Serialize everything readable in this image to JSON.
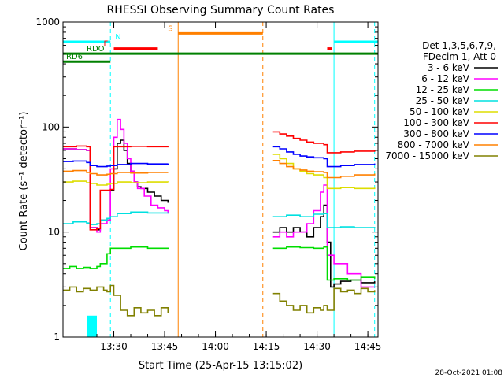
{
  "chart_data": {
    "type": "line",
    "title": "RHESSI Observing Summary Count Rates",
    "xlabel": "Start Time (25-Apr-15 13:15:02)",
    "ylabel": "Count Rate (s⁻¹ detector⁻¹)",
    "y_scale": "log",
    "ylim": [
      1,
      1000
    ],
    "x_units": "minutes after 13:15:02",
    "xlim": [
      0,
      93
    ],
    "x_ticks": [
      {
        "t": 15,
        "label": "13:30"
      },
      {
        "t": 30,
        "label": "13:45"
      },
      {
        "t": 45,
        "label": "14:00"
      },
      {
        "t": 60,
        "label": "14:15"
      },
      {
        "t": 75,
        "label": "14:30"
      },
      {
        "t": 90,
        "label": "14:45"
      }
    ],
    "y_ticks": [
      {
        "v": 1,
        "label": "1"
      },
      {
        "v": 10,
        "label": "10"
      },
      {
        "v": 100,
        "label": "100"
      },
      {
        "v": 1000,
        "label": "1000"
      }
    ],
    "legend_header": [
      "Det 1,3,5,6,7,9,",
      "FDecim 1, Att 0"
    ],
    "legend_position": "right",
    "series": [
      {
        "name": "3 - 6 keV",
        "color": "#000000",
        "segments": [
          [
            [
              0,
              62
            ],
            [
              4,
              61
            ],
            [
              7,
              60
            ],
            [
              8,
              11
            ],
            [
              10,
              10.5
            ],
            [
              11,
              13
            ],
            [
              13,
              13
            ],
            [
              14,
              25
            ],
            [
              15,
              40
            ],
            [
              16,
              70
            ],
            [
              17,
              75
            ],
            [
              18,
              60
            ],
            [
              19,
              45
            ],
            [
              20,
              38
            ],
            [
              21,
              30
            ],
            [
              22,
              27
            ],
            [
              23,
              26
            ],
            [
              25,
              24
            ],
            [
              27,
              22
            ],
            [
              29,
              20
            ],
            [
              31,
              19
            ]
          ],
          [
            [
              62,
              10
            ],
            [
              64,
              11
            ],
            [
              66,
              10
            ],
            [
              68,
              11
            ],
            [
              70,
              10
            ],
            [
              72,
              9
            ],
            [
              74,
              11
            ],
            [
              76,
              14
            ],
            [
              77,
              18
            ],
            [
              78,
              8
            ],
            [
              79,
              3
            ],
            [
              80,
              3.2
            ],
            [
              82,
              3.4
            ],
            [
              85,
              3.5
            ],
            [
              88,
              3.3
            ],
            [
              92,
              3.4
            ]
          ]
        ]
      },
      {
        "name": "6 - 12 keV",
        "color": "#ff00ff",
        "segments": [
          [
            [
              0,
              62
            ],
            [
              4,
              61
            ],
            [
              7,
              60
            ],
            [
              8,
              11
            ],
            [
              10,
              10
            ],
            [
              11,
              12
            ],
            [
              13,
              13
            ],
            [
              14,
              40
            ],
            [
              15,
              80
            ],
            [
              16,
              118
            ],
            [
              17,
              95
            ],
            [
              18,
              70
            ],
            [
              19,
              50
            ],
            [
              20,
              38
            ],
            [
              21,
              30
            ],
            [
              22,
              26
            ],
            [
              24,
              22
            ],
            [
              26,
              18
            ],
            [
              28,
              17
            ],
            [
              30,
              16
            ],
            [
              31,
              15
            ]
          ],
          [
            [
              62,
              9
            ],
            [
              64,
              10
            ],
            [
              66,
              9
            ],
            [
              68,
              10
            ],
            [
              70,
              10
            ],
            [
              72,
              12
            ],
            [
              74,
              16
            ],
            [
              76,
              24
            ],
            [
              77,
              28
            ],
            [
              78,
              6
            ],
            [
              80,
              5
            ],
            [
              84,
              4
            ],
            [
              88,
              3
            ],
            [
              92,
              3
            ]
          ]
        ]
      },
      {
        "name": "12 - 25 keV",
        "color": "#00dd00",
        "segments": [
          [
            [
              0,
              4.5
            ],
            [
              2,
              4.7
            ],
            [
              4,
              4.5
            ],
            [
              6,
              4.6
            ],
            [
              8,
              4.5
            ],
            [
              10,
              4.7
            ],
            [
              11,
              5
            ],
            [
              13,
              6.2
            ],
            [
              14,
              7
            ],
            [
              16,
              7
            ],
            [
              20,
              7.2
            ],
            [
              25,
              7
            ],
            [
              31,
              7.1
            ]
          ],
          [
            [
              62,
              7
            ],
            [
              66,
              7.2
            ],
            [
              70,
              7.1
            ],
            [
              74,
              7
            ],
            [
              77,
              7.2
            ],
            [
              78,
              3.5
            ],
            [
              80,
              3.6
            ],
            [
              84,
              3.5
            ],
            [
              88,
              3.7
            ],
            [
              92,
              3.6
            ]
          ]
        ]
      },
      {
        "name": "25 - 50 keV",
        "color": "#00e0e0",
        "segments": [
          [
            [
              0,
              12
            ],
            [
              3,
              12.5
            ],
            [
              7,
              12.2
            ],
            [
              8,
              11.8
            ],
            [
              10,
              12
            ],
            [
              11,
              13
            ],
            [
              13,
              13.5
            ],
            [
              14,
              14
            ],
            [
              16,
              15
            ],
            [
              20,
              15.5
            ],
            [
              25,
              15.2
            ],
            [
              31,
              15
            ]
          ],
          [
            [
              62,
              14
            ],
            [
              66,
              14.5
            ],
            [
              70,
              14
            ],
            [
              74,
              14.8
            ],
            [
              77,
              15
            ],
            [
              78,
              11
            ],
            [
              82,
              11.2
            ],
            [
              86,
              11
            ],
            [
              92,
              11.2
            ]
          ]
        ]
      },
      {
        "name": "50 - 100 keV",
        "color": "#dddd00",
        "segments": [
          [
            [
              0,
              30
            ],
            [
              3,
              30.5
            ],
            [
              7,
              29.5
            ],
            [
              8,
              29
            ],
            [
              10,
              28
            ],
            [
              13,
              28.5
            ],
            [
              14,
              29
            ],
            [
              16,
              30
            ],
            [
              20,
              29.5
            ],
            [
              25,
              30
            ],
            [
              31,
              29.8
            ]
          ],
          [
            [
              62,
              55
            ],
            [
              64,
              50
            ],
            [
              66,
              45
            ],
            [
              68,
              40
            ],
            [
              70,
              38
            ],
            [
              72,
              36
            ],
            [
              74,
              35
            ],
            [
              77,
              33
            ],
            [
              78,
              26
            ],
            [
              82,
              26.5
            ],
            [
              86,
              26
            ],
            [
              92,
              26.5
            ]
          ]
        ]
      },
      {
        "name": "100 - 300 keV",
        "color": "#ff0000",
        "segments": [
          [
            [
              0,
              65
            ],
            [
              4,
              66
            ],
            [
              7,
              65
            ],
            [
              8,
              10.5
            ],
            [
              10,
              10.8
            ],
            [
              11,
              25
            ],
            [
              14,
              25.5
            ],
            [
              15,
              65
            ],
            [
              20,
              65.5
            ],
            [
              25,
              65
            ],
            [
              31,
              65.2
            ]
          ],
          [
            [
              62,
              90
            ],
            [
              64,
              86
            ],
            [
              66,
              82
            ],
            [
              68,
              78
            ],
            [
              70,
              75
            ],
            [
              72,
              72
            ],
            [
              74,
              70
            ],
            [
              77,
              68
            ],
            [
              78,
              57
            ],
            [
              82,
              58
            ],
            [
              86,
              59
            ],
            [
              92,
              60
            ]
          ]
        ]
      },
      {
        "name": "300 - 800 keV",
        "color": "#0000ff",
        "segments": [
          [
            [
              0,
              47
            ],
            [
              3,
              47.5
            ],
            [
              7,
              46
            ],
            [
              8,
              43
            ],
            [
              10,
              42
            ],
            [
              13,
              42.5
            ],
            [
              14,
              43
            ],
            [
              16,
              44
            ],
            [
              20,
              45
            ],
            [
              25,
              44.5
            ],
            [
              31,
              45
            ]
          ],
          [
            [
              62,
              65
            ],
            [
              64,
              62
            ],
            [
              66,
              58
            ],
            [
              68,
              55
            ],
            [
              70,
              53
            ],
            [
              72,
              52
            ],
            [
              74,
              51
            ],
            [
              77,
              50
            ],
            [
              78,
              42
            ],
            [
              82,
              43
            ],
            [
              86,
              44
            ],
            [
              92,
              45
            ]
          ]
        ]
      },
      {
        "name": "800 - 7000 keV",
        "color": "#ff8000",
        "segments": [
          [
            [
              0,
              38
            ],
            [
              3,
              38.5
            ],
            [
              7,
              37
            ],
            [
              8,
              36
            ],
            [
              10,
              35
            ],
            [
              13,
              35.5
            ],
            [
              14,
              36
            ],
            [
              16,
              37
            ],
            [
              20,
              36.5
            ],
            [
              25,
              37
            ],
            [
              31,
              36.8
            ]
          ],
          [
            [
              62,
              48
            ],
            [
              64,
              45
            ],
            [
              66,
              42
            ],
            [
              68,
              40
            ],
            [
              70,
              39
            ],
            [
              72,
              38
            ],
            [
              74,
              37.5
            ],
            [
              77,
              37
            ],
            [
              78,
              33
            ],
            [
              82,
              34
            ],
            [
              86,
              35
            ],
            [
              92,
              36
            ]
          ]
        ]
      },
      {
        "name": "7000 - 15000 keV",
        "color": "#808000",
        "segments": [
          [
            [
              0,
              2.8
            ],
            [
              2,
              3.0
            ],
            [
              4,
              2.7
            ],
            [
              6,
              2.9
            ],
            [
              8,
              2.8
            ],
            [
              10,
              3.0
            ],
            [
              12,
              2.8
            ],
            [
              13,
              2.7
            ],
            [
              14,
              3.1
            ],
            [
              15,
              2.5
            ],
            [
              17,
              1.8
            ],
            [
              19,
              1.6
            ],
            [
              21,
              1.9
            ],
            [
              23,
              1.7
            ],
            [
              25,
              1.8
            ],
            [
              27,
              1.6
            ],
            [
              29,
              1.9
            ],
            [
              31,
              1.7
            ]
          ],
          [
            [
              62,
              2.6
            ],
            [
              64,
              2.2
            ],
            [
              66,
              2.0
            ],
            [
              68,
              1.8
            ],
            [
              70,
              2.0
            ],
            [
              72,
              1.7
            ],
            [
              74,
              1.9
            ],
            [
              76,
              1.8
            ],
            [
              77,
              2.0
            ],
            [
              78,
              1.8
            ],
            [
              80,
              2.9
            ],
            [
              82,
              2.7
            ],
            [
              84,
              2.8
            ],
            [
              86,
              2.6
            ],
            [
              88,
              2.9
            ],
            [
              90,
              2.7
            ],
            [
              92,
              2.8
            ]
          ]
        ]
      }
    ],
    "state_bars": [
      {
        "label": "N",
        "color": "#00ffff",
        "from": 0,
        "to": 14,
        "level": 650
      },
      {
        "label": "",
        "color": "#00ffff",
        "from": 80,
        "to": 93,
        "level": 650
      },
      {
        "label": "S",
        "color": "#ff8000",
        "from": 34,
        "to": 59,
        "level": 780
      },
      {
        "label": "F",
        "color": "#ff0000",
        "from": 15,
        "to": 28,
        "level": 560
      },
      {
        "label": "",
        "color": "#ff0000",
        "from": 78,
        "to": 79.5,
        "level": 560
      },
      {
        "label": "RDO",
        "color": "#008000",
        "from": 0,
        "to": 93,
        "level": 500
      },
      {
        "label": "RD6",
        "color": "#008000",
        "from": 0,
        "to": 14,
        "level": 420
      }
    ],
    "vertical_markers": [
      {
        "t": 14,
        "color": "#00ffff",
        "style": "dashed"
      },
      {
        "t": 34,
        "color": "#ff8000",
        "style": "solid"
      },
      {
        "t": 59,
        "color": "#ff8000",
        "style": "dashed"
      },
      {
        "t": 80,
        "color": "#00ffff",
        "style": "solid"
      },
      {
        "t": 92,
        "color": "#00ffff",
        "style": "dashed"
      },
      {
        "t": 0,
        "color": "#00ffff",
        "style": "solid"
      }
    ],
    "shaded_blocks": [
      {
        "color": "#00ffff",
        "from": 7,
        "to": 10,
        "ymin": 1,
        "ymax": 1.6
      }
    ],
    "footer_date": "28-Oct-2021 01:08"
  }
}
